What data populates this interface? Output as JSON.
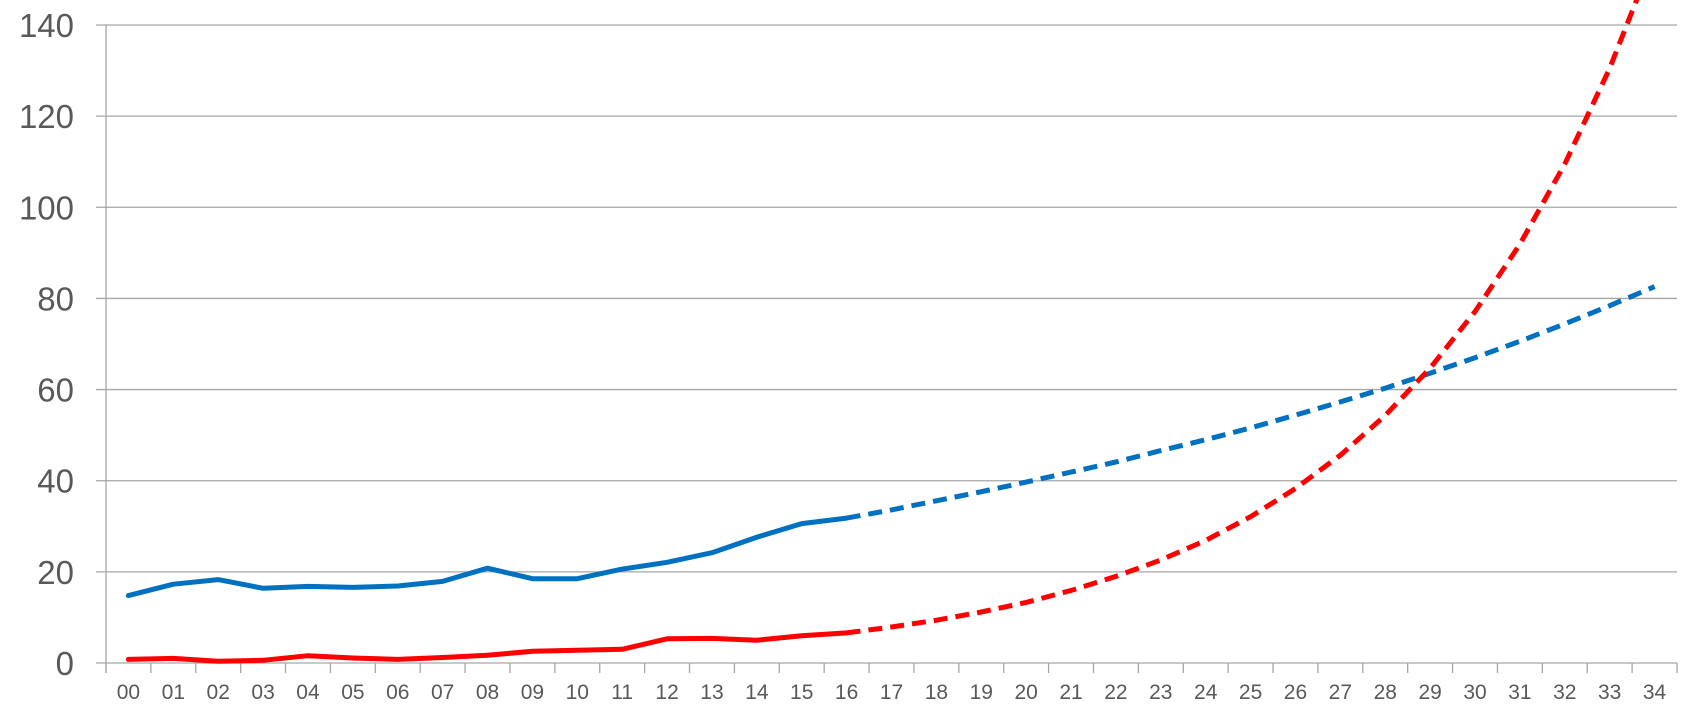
{
  "chart_data": {
    "type": "line",
    "title": "",
    "xlabel": "",
    "ylabel": "",
    "x": [
      "00",
      "01",
      "02",
      "03",
      "04",
      "05",
      "06",
      "07",
      "08",
      "09",
      "10",
      "11",
      "12",
      "13",
      "14",
      "15",
      "16",
      "17",
      "18",
      "19",
      "20",
      "21",
      "22",
      "23",
      "24",
      "25",
      "26",
      "27",
      "28",
      "29",
      "30",
      "31",
      "32",
      "33",
      "34"
    ],
    "ylim": [
      0,
      140
    ],
    "yticks": [
      0,
      20,
      40,
      60,
      80,
      100,
      120,
      140
    ],
    "grid": true,
    "legend": "none",
    "projection_starts_at": "16",
    "series": [
      {
        "color": "#0070C0",
        "values": [
          14.8,
          17.3,
          18.3,
          16.4,
          16.8,
          16.6,
          16.9,
          17.9,
          20.8,
          18.5,
          18.5,
          20.6,
          22.1,
          24.2,
          27.6,
          30.6,
          31.8,
          33.6,
          35.6,
          37.6,
          39.7,
          41.9,
          44.1,
          46.6,
          49.0,
          51.6,
          54.4,
          57.3,
          60.3,
          63.6,
          67.0,
          70.6,
          74.4,
          78.4,
          82.6
        ]
      },
      {
        "color": "#FF0000",
        "values": [
          0.8,
          1.0,
          0.4,
          0.6,
          1.6,
          1.1,
          0.8,
          1.2,
          1.7,
          2.6,
          2.8,
          3.0,
          5.3,
          5.4,
          5.0,
          6.0,
          6.6,
          7.9,
          9.4,
          11.2,
          13.3,
          15.9,
          19.0,
          22.6,
          26.9,
          32.1,
          38.3,
          45.6,
          54.3,
          64.7,
          77.1,
          91.9,
          109.5,
          130.5,
          155.5
        ]
      }
    ]
  }
}
